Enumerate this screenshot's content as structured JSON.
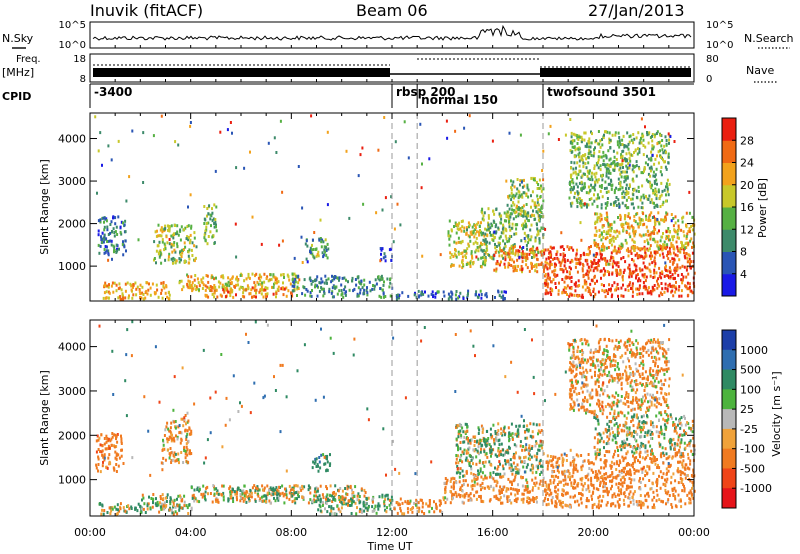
{
  "header": {
    "station": "Inuvik (fitACF)",
    "beam": "Beam 06",
    "date": "27/Jan/2013"
  },
  "top_panels": {
    "nsky": {
      "label": "N.Sky",
      "tick_hi": "10^5",
      "tick_lo": "10^0"
    },
    "nsearch": {
      "label": "N.Search",
      "tick_hi": "10^5",
      "tick_lo": "10^0"
    },
    "freq": {
      "label_line1": "Freq.",
      "label_line2": "[MHz]",
      "tick_hi": "18",
      "tick_lo": "8"
    },
    "nave": {
      "label": "Nave",
      "tick_hi": "80",
      "tick_lo": "0"
    },
    "cpid": {
      "label": "CPID",
      "segments": [
        {
          "text": "-3400",
          "start_hour": 0
        },
        {
          "text": "rbsp 200",
          "start_hour": 12
        },
        {
          "text": "normal 150",
          "start_hour": 13
        },
        {
          "text": "twofsound 3501",
          "start_hour": 18
        }
      ]
    }
  },
  "power_colorbar": {
    "label": "Power [dB]",
    "ticks": [
      "4",
      "8",
      "12",
      "16",
      "20",
      "24",
      "28"
    ],
    "colors": [
      "#1a1ae6",
      "#2a55b5",
      "#3d8a6a",
      "#56b043",
      "#c8c82a",
      "#f2a21c",
      "#f06a14",
      "#ea1f10"
    ]
  },
  "velocity_colorbar": {
    "label": "Velocity [m s⁻¹]",
    "ticks": [
      "1000",
      "500",
      "100",
      "25",
      "-25",
      "-100",
      "-500",
      "-1000"
    ],
    "colors": [
      "#1c3ea8",
      "#2f6eb0",
      "#2f8a63",
      "#4db33d",
      "#b8b8b8",
      "#f0a23a",
      "#f07a20",
      "#ef4418",
      "#e6141a"
    ]
  },
  "x_axis": {
    "title": "Time UT",
    "ticks": [
      "00:00",
      "04:00",
      "08:00",
      "12:00",
      "16:00",
      "20:00",
      "00:00"
    ]
  },
  "chart_data": [
    {
      "type": "heatmap",
      "name": "power",
      "xlabel": "Time UT",
      "ylabel": "Slant Range [km]",
      "xlim": [
        0,
        24
      ],
      "ylim": [
        180,
        4600
      ],
      "yticks": [
        "1000",
        "2000",
        "3000",
        "4000"
      ],
      "cbar_label": "Power [dB]",
      "clim": [
        0,
        32
      ],
      "vertical_markers_hours": [
        12,
        13,
        18
      ],
      "patches": [
        {
          "t0": 0.3,
          "t1": 1.4,
          "r0": 1300,
          "r1": 2200,
          "level": 8
        },
        {
          "t0": 0.5,
          "t1": 3.2,
          "r0": 250,
          "r1": 650,
          "level": 22
        },
        {
          "t0": 2.5,
          "t1": 4.2,
          "r0": 1100,
          "r1": 2000,
          "level": 16
        },
        {
          "t0": 4.5,
          "t1": 5.0,
          "r0": 1500,
          "r1": 2500,
          "level": 14
        },
        {
          "t0": 3.5,
          "t1": 8.3,
          "r0": 450,
          "r1": 850,
          "level": 20
        },
        {
          "t0": 4.3,
          "t1": 8.0,
          "r0": 300,
          "r1": 550,
          "level": 24
        },
        {
          "t0": 8.0,
          "t1": 12.0,
          "r0": 300,
          "r1": 800,
          "level": 10
        },
        {
          "t0": 8.5,
          "t1": 9.5,
          "r0": 1200,
          "r1": 1700,
          "level": 12
        },
        {
          "t0": 11.5,
          "t1": 12.0,
          "r0": 1150,
          "r1": 1450,
          "level": 5
        },
        {
          "t0": 12.0,
          "t1": 16.5,
          "r0": 250,
          "r1": 450,
          "level": 7
        },
        {
          "t0": 14.2,
          "t1": 15.8,
          "r0": 1000,
          "r1": 2100,
          "level": 18
        },
        {
          "t0": 15.5,
          "t1": 18.0,
          "r0": 1200,
          "r1": 2400,
          "level": 14
        },
        {
          "t0": 16.0,
          "t1": 18.0,
          "r0": 900,
          "r1": 1500,
          "level": 24
        },
        {
          "t0": 16.5,
          "t1": 18.0,
          "r0": 2200,
          "r1": 3100,
          "level": 16
        },
        {
          "t0": 18.0,
          "t1": 24.0,
          "r0": 300,
          "r1": 1500,
          "level": 28
        },
        {
          "t0": 20.0,
          "t1": 24.0,
          "r0": 1400,
          "r1": 2300,
          "level": 20
        },
        {
          "t0": 19.0,
          "t1": 23.0,
          "r0": 2400,
          "r1": 4200,
          "level": 14
        }
      ]
    },
    {
      "type": "heatmap",
      "name": "velocity",
      "xlabel": "Time UT",
      "ylabel": "Slant Range [km]",
      "xlim": [
        0,
        24
      ],
      "ylim": [
        180,
        4600
      ],
      "yticks": [
        "1000",
        "2000",
        "3000",
        "4000"
      ],
      "cbar_label": "Velocity [m s⁻¹]",
      "clim": [
        -1000,
        1000
      ],
      "vertical_markers_hours": [
        12,
        13,
        18
      ],
      "patches": [
        {
          "t0": 0.2,
          "t1": 1.3,
          "r0": 1200,
          "r1": 2100,
          "level": -300
        },
        {
          "t0": 0.3,
          "t1": 4.0,
          "r0": 250,
          "r1": 500,
          "level": 50
        },
        {
          "t0": 2.0,
          "t1": 4.0,
          "r0": 350,
          "r1": 700,
          "level": -10
        },
        {
          "t0": 2.8,
          "t1": 4.0,
          "r0": 1400,
          "r1": 2400,
          "level": -150
        },
        {
          "t0": 4.0,
          "t1": 11.0,
          "r0": 500,
          "r1": 900,
          "level": 0
        },
        {
          "t0": 5.5,
          "t1": 8.5,
          "r0": 600,
          "r1": 850,
          "level": 0
        },
        {
          "t0": 9.0,
          "t1": 12.0,
          "r0": 250,
          "r1": 700,
          "level": 120
        },
        {
          "t0": 8.8,
          "t1": 9.5,
          "r0": 1200,
          "r1": 1600,
          "level": 300
        },
        {
          "t0": 12.0,
          "t1": 14.0,
          "r0": 250,
          "r1": 600,
          "level": -200
        },
        {
          "t0": 14.5,
          "t1": 18.0,
          "r0": 1100,
          "r1": 2300,
          "level": 60
        },
        {
          "t0": 14.0,
          "t1": 18.0,
          "r0": 500,
          "r1": 1100,
          "level": -200
        },
        {
          "t0": 18.0,
          "t1": 24.0,
          "r0": 400,
          "r1": 1600,
          "level": -250
        },
        {
          "t0": 20.0,
          "t1": 24.0,
          "r0": 1600,
          "r1": 2500,
          "level": 0
        },
        {
          "t0": 19.0,
          "t1": 23.0,
          "r0": 2500,
          "r1": 4200,
          "level": -150
        }
      ]
    }
  ]
}
